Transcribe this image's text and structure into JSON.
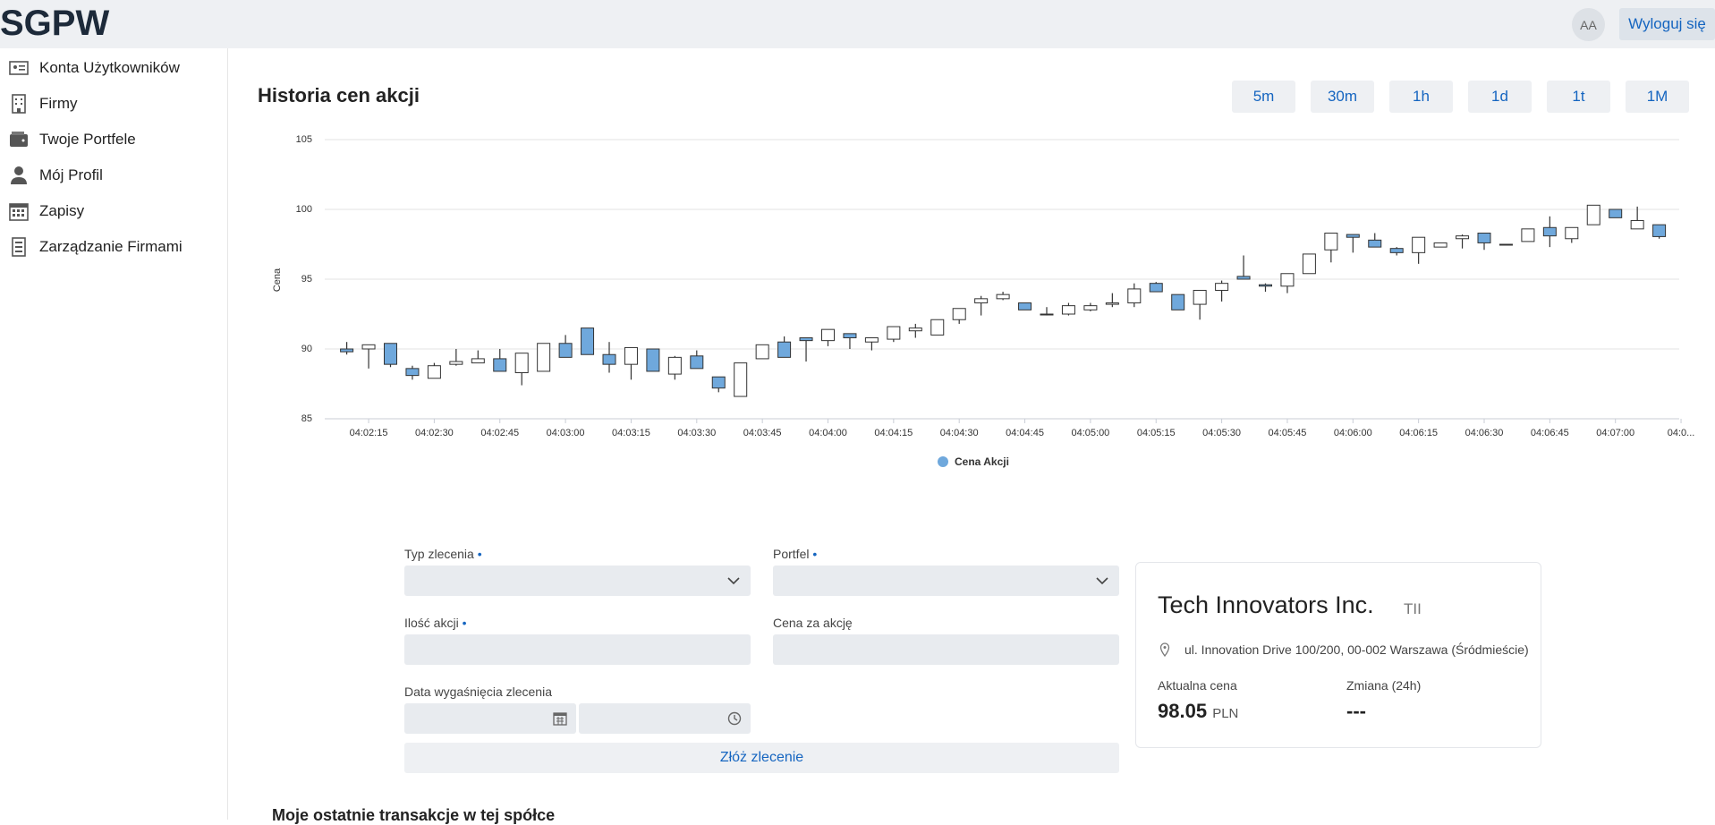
{
  "header": {
    "brand": "SGPW",
    "avatar": "AA",
    "logout": "Wyloguj się"
  },
  "nav": [
    {
      "label": "Konta Użytkowników"
    },
    {
      "label": "Firmy"
    },
    {
      "label": "Twoje Portfele"
    },
    {
      "label": "Mój Profil"
    },
    {
      "label": "Zapisy"
    },
    {
      "label": "Zarządzanie Firmami"
    }
  ],
  "ranges": [
    "5m",
    "30m",
    "1h",
    "1d",
    "1t",
    "1M"
  ],
  "chart_data": {
    "type": "candlestick",
    "title": "Historia cen akcji",
    "y_label": "Cena",
    "legend": "Cena Akcji",
    "grid": true,
    "up_color": "#ffffff",
    "down_color": "#6fa8dc",
    "stroke_color": "#333333",
    "x": [
      "04:02:10",
      "04:02:15",
      "04:02:20",
      "04:02:25",
      "04:02:30",
      "04:02:35",
      "04:02:40",
      "04:02:45",
      "04:02:50",
      "04:02:55",
      "04:03:00",
      "04:03:05",
      "04:03:10",
      "04:03:15",
      "04:03:20",
      "04:03:25",
      "04:03:30",
      "04:03:35",
      "04:03:40",
      "04:03:45",
      "04:03:50",
      "04:03:55",
      "04:04:00",
      "04:04:05",
      "04:04:10",
      "04:04:15",
      "04:04:20",
      "04:04:25",
      "04:04:30",
      "04:04:35",
      "04:04:40",
      "04:04:45",
      "04:04:50",
      "04:04:55",
      "04:05:00",
      "04:05:05",
      "04:05:10",
      "04:05:15",
      "04:05:20",
      "04:05:25",
      "04:05:30",
      "04:05:35",
      "04:05:40",
      "04:05:45",
      "04:05:50",
      "04:05:55",
      "04:06:00",
      "04:06:05",
      "04:06:10",
      "04:06:15",
      "04:06:20",
      "04:06:25",
      "04:06:30",
      "04:06:35",
      "04:06:40",
      "04:06:45",
      "04:06:50",
      "04:06:55",
      "04:07:00",
      "04:07:05",
      "04:07:10"
    ],
    "open": [
      90.0,
      90.0,
      90.4,
      88.6,
      87.9,
      88.9,
      89.0,
      89.3,
      88.3,
      88.4,
      90.4,
      91.5,
      89.6,
      88.9,
      90.0,
      88.2,
      89.5,
      88.0,
      86.6,
      89.3,
      90.5,
      90.8,
      90.6,
      91.1,
      90.5,
      90.7,
      91.3,
      91.0,
      92.1,
      93.3,
      93.6,
      93.3,
      92.5,
      92.5,
      92.8,
      93.2,
      93.3,
      94.7,
      93.9,
      93.2,
      94.2,
      95.2,
      94.6,
      94.5,
      95.4,
      97.1,
      98.2,
      97.8,
      97.2,
      96.9,
      97.3,
      97.9,
      98.3,
      97.5,
      97.7,
      98.7,
      97.9,
      98.9,
      100.0,
      98.6,
      98.9
    ],
    "high": [
      90.5,
      90.3,
      90.4,
      88.8,
      89.0,
      90.0,
      89.9,
      90.0,
      89.7,
      90.4,
      91.0,
      91.5,
      90.5,
      90.1,
      90.0,
      89.5,
      89.9,
      88.0,
      89.0,
      90.3,
      90.9,
      90.8,
      91.4,
      91.1,
      90.8,
      91.6,
      91.8,
      92.1,
      92.9,
      93.8,
      94.1,
      93.3,
      93.0,
      93.3,
      93.3,
      94.0,
      94.7,
      94.8,
      93.9,
      94.2,
      94.9,
      96.7,
      94.7,
      95.4,
      96.8,
      98.3,
      98.2,
      98.3,
      97.3,
      98.0,
      97.6,
      98.2,
      98.3,
      97.5,
      98.6,
      99.5,
      98.7,
      100.3,
      100.0,
      100.2,
      98.9
    ],
    "low": [
      89.6,
      88.6,
      88.7,
      87.8,
      87.9,
      88.8,
      89.0,
      88.4,
      87.4,
      88.4,
      89.4,
      89.6,
      88.3,
      87.8,
      88.4,
      87.8,
      88.6,
      86.9,
      86.6,
      89.3,
      89.4,
      89.1,
      90.2,
      90.0,
      89.9,
      90.5,
      90.8,
      91.0,
      91.8,
      92.4,
      93.5,
      92.8,
      92.4,
      92.4,
      92.7,
      93.0,
      93.0,
      94.1,
      92.8,
      92.1,
      93.4,
      95.0,
      94.1,
      94.0,
      95.4,
      96.2,
      96.9,
      97.3,
      96.7,
      96.1,
      97.3,
      97.2,
      97.1,
      97.5,
      97.7,
      97.3,
      97.6,
      98.9,
      99.4,
      98.6,
      97.9
    ],
    "close": [
      89.8,
      90.3,
      88.9,
      88.1,
      88.8,
      89.1,
      89.3,
      88.4,
      89.7,
      90.4,
      89.4,
      89.6,
      88.9,
      90.1,
      88.4,
      89.4,
      88.6,
      87.2,
      89.0,
      90.3,
      89.4,
      90.6,
      91.4,
      90.8,
      90.8,
      91.6,
      91.5,
      92.1,
      92.9,
      93.6,
      93.9,
      92.8,
      92.5,
      93.1,
      93.1,
      93.3,
      94.3,
      94.1,
      92.8,
      94.2,
      94.7,
      95.0,
      94.5,
      95.4,
      96.8,
      98.3,
      98.0,
      97.3,
      96.9,
      98.0,
      97.6,
      98.1,
      97.6,
      97.5,
      98.6,
      98.1,
      98.7,
      100.3,
      99.4,
      99.2,
      98.05
    ],
    "xticks": [
      "04:02:15",
      "04:02:30",
      "04:02:45",
      "04:03:00",
      "04:03:15",
      "04:03:30",
      "04:03:45",
      "04:04:00",
      "04:04:15",
      "04:04:30",
      "04:04:45",
      "04:05:00",
      "04:05:15",
      "04:05:30",
      "04:05:45",
      "04:06:00",
      "04:06:15",
      "04:06:30",
      "04:06:45",
      "04:07:00",
      {
        "value": "04:07:15",
        "label": "04:0..."
      }
    ],
    "ylim": [
      85,
      105
    ],
    "yticks": [
      85,
      90,
      95,
      100,
      105
    ]
  },
  "form": {
    "required_mark": "•",
    "order_type": "Typ zlecenia",
    "portfolio": "Portfel",
    "quantity": "Ilość akcji",
    "price": "Cena za akcję",
    "expiry": "Data wygaśnięcia zlecenia",
    "submit": "Złóż zlecenie"
  },
  "company": {
    "name": "Tech Innovators Inc.",
    "ticker": "TII",
    "address": "ul. Innovation Drive 100/200, 00-002 Warszawa (Śródmieście)",
    "price_label": "Aktualna cena",
    "price": "98.05",
    "currency": "PLN",
    "change_label": "Zmiana (24h)",
    "change": "---"
  },
  "transactions": {
    "title": "Moje ostatnie transakcje w tej spółce"
  }
}
